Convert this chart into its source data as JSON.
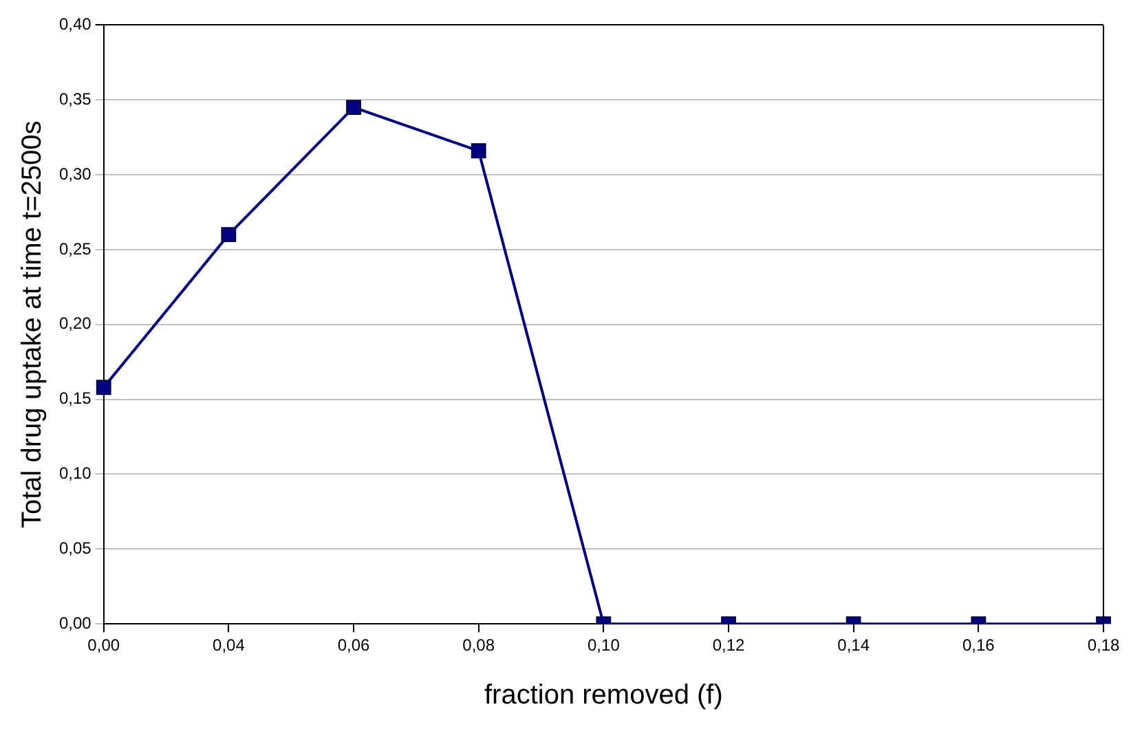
{
  "chart_data": {
    "type": "line",
    "xlabel": "fraction removed (f)",
    "ylabel": "Total drug uptake at time t=2500s",
    "categories": [
      "0,00",
      "0,04",
      "0,06",
      "0,08",
      "0,10",
      "0,12",
      "0,14",
      "0,16",
      "0,18"
    ],
    "series": [
      {
        "color": "#000080",
        "values": [
          0.158,
          0.26,
          0.345,
          0.316,
          0,
          0,
          0,
          0,
          0
        ]
      }
    ],
    "ylim": [
      0,
      0.4
    ],
    "yticks": [
      {
        "value": 0,
        "label": "0,00"
      },
      {
        "value": 0.05,
        "label": "0,05"
      },
      {
        "value": 0.1,
        "label": "0,10"
      },
      {
        "value": 0.15,
        "label": "0,15"
      },
      {
        "value": 0.2,
        "label": "0,20"
      },
      {
        "value": 0.25,
        "label": "0,25"
      },
      {
        "value": 0.3,
        "label": "0,30"
      },
      {
        "value": 0.35,
        "label": "0,35"
      },
      {
        "value": 0.4,
        "label": "0,40"
      }
    ],
    "grid": "y",
    "legend": false,
    "marker": "square",
    "line_style": "solid"
  }
}
